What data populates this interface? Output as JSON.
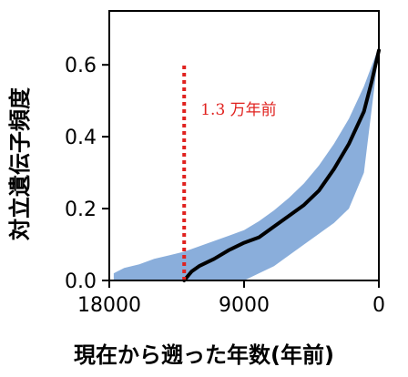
{
  "chart_data": {
    "type": "line",
    "xlabel": "現在から遡った年数(年前)",
    "ylabel": "対立遺伝子頻度",
    "x_reversed": true,
    "xlim": [
      18000,
      0
    ],
    "ylim": [
      0,
      0.75
    ],
    "x_ticks": [
      18000,
      9000,
      0
    ],
    "x_tick_labels": [
      "18000",
      "9000",
      "0"
    ],
    "y_ticks": [
      0.0,
      0.2,
      0.4,
      0.6
    ],
    "y_tick_labels": [
      "0.0",
      "0.2",
      "0.4",
      "0.6"
    ],
    "grid": false,
    "colors": {
      "band": "#8aaedb",
      "median": "#000000",
      "marker": "#e0221f"
    },
    "series": [
      {
        "style": "line",
        "x": [
          13000,
          12500,
          12000,
          11000,
          10000,
          9000,
          8000,
          7000,
          6000,
          5000,
          4000,
          3000,
          2000,
          1000,
          500,
          0
        ],
        "y": [
          0.0,
          0.025,
          0.04,
          0.06,
          0.085,
          0.105,
          0.12,
          0.15,
          0.18,
          0.21,
          0.25,
          0.31,
          0.38,
          0.47,
          0.55,
          0.64
        ]
      },
      {
        "style": "band",
        "x": [
          17700,
          17000,
          16000,
          15000,
          14000,
          13000,
          12000,
          11000,
          10000,
          9000,
          8000,
          7000,
          6000,
          5000,
          4000,
          3000,
          2000,
          1000,
          0
        ],
        "upper": [
          0.02,
          0.035,
          0.045,
          0.06,
          0.07,
          0.08,
          0.095,
          0.11,
          0.125,
          0.14,
          0.165,
          0.195,
          0.23,
          0.27,
          0.32,
          0.38,
          0.45,
          0.54,
          0.65
        ],
        "lower": [
          0.0,
          0.0,
          0.0,
          0.0,
          0.0,
          0.0,
          0.0,
          0.0,
          0.0,
          0.0,
          0.02,
          0.04,
          0.07,
          0.1,
          0.13,
          0.16,
          0.2,
          0.3,
          0.64
        ]
      }
    ],
    "annotations": [
      {
        "type": "vline",
        "x": 13000,
        "label": "1.3 万年前"
      }
    ]
  }
}
